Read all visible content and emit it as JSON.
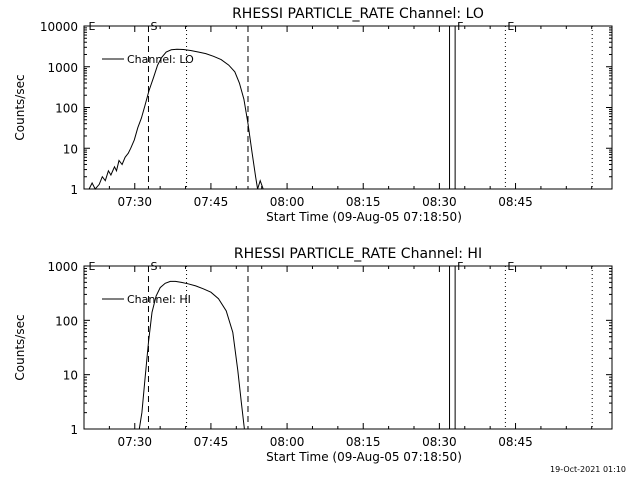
{
  "footer_text": "19-Oct-2021 01:10",
  "colors": {
    "background": "#ffffff",
    "foreground": "#000000"
  },
  "chart_data": [
    {
      "type": "line",
      "title": "RHESSI PARTICLE_RATE Channel: LO",
      "xlabel": "Start Time (09-Aug-05 07:18:50)",
      "ylabel": "Counts/sec",
      "yscale": "log",
      "ylim": [
        1,
        10000
      ],
      "yticks": [
        1,
        10,
        100,
        1000,
        10000
      ],
      "ytick_labels": [
        "1",
        "10",
        "100",
        "1000",
        "10000"
      ],
      "xlim_minutes": [
        440,
        544
      ],
      "xticks_minutes": [
        450,
        465,
        480,
        495,
        510,
        525
      ],
      "xtick_labels": [
        "07:30",
        "07:45",
        "08:00",
        "08:15",
        "08:30",
        "08:45"
      ],
      "grid": false,
      "legend_position": "top-left",
      "markers": [
        {
          "label": "E",
          "time_minutes": 440.5,
          "style": "none"
        },
        {
          "label": "S",
          "time_minutes": 452.7,
          "style": "dashed"
        },
        {
          "label": "",
          "time_minutes": 460.2,
          "style": "dotted"
        },
        {
          "label": "",
          "time_minutes": 472.3,
          "style": "dashed"
        },
        {
          "label": "",
          "time_minutes": 512.0,
          "style": "solid"
        },
        {
          "label": "F",
          "time_minutes": 513.1,
          "style": "solid"
        },
        {
          "label": "E",
          "time_minutes": 523.0,
          "style": "dotted"
        },
        {
          "label": "",
          "time_minutes": 540.1,
          "style": "dotted"
        }
      ],
      "series": [
        {
          "name": "Channel: LO",
          "x_minutes": [
            441.0,
            441.6,
            442.2,
            443.0,
            443.6,
            444.2,
            444.8,
            445.3,
            446.0,
            446.4,
            446.9,
            447.5,
            448.1,
            448.7,
            449.2,
            449.9,
            450.6,
            451.3,
            452.0,
            452.8,
            453.7,
            454.5,
            455.3,
            456.2,
            457.2,
            458.3,
            459.6,
            461.0,
            462.5,
            464.0,
            465.5,
            467.0,
            468.5,
            469.7,
            470.6,
            471.5,
            472.3,
            473.1,
            473.8,
            474.2,
            474.7,
            475.3
          ],
          "values": [
            1,
            1.4,
            1,
            1.3,
            2,
            1.6,
            2.8,
            2.2,
            3.5,
            2.8,
            5,
            4,
            6,
            7.5,
            10,
            16,
            32,
            55,
            110,
            260,
            550,
            1100,
            1700,
            2300,
            2600,
            2700,
            2650,
            2500,
            2300,
            2100,
            1800,
            1500,
            1100,
            750,
            400,
            160,
            40,
            8,
            2,
            1,
            1.6,
            1
          ]
        }
      ]
    },
    {
      "type": "line",
      "title": "RHESSI PARTICLE_RATE Channel: HI",
      "xlabel": "Start Time (09-Aug-05 07:18:50)",
      "ylabel": "Counts/sec",
      "yscale": "log",
      "ylim": [
        1,
        1000
      ],
      "yticks": [
        1,
        10,
        100,
        1000
      ],
      "ytick_labels": [
        "1",
        "10",
        "100",
        "1000"
      ],
      "xlim_minutes": [
        440,
        544
      ],
      "xticks_minutes": [
        450,
        465,
        480,
        495,
        510,
        525
      ],
      "xtick_labels": [
        "07:30",
        "07:45",
        "08:00",
        "08:15",
        "08:30",
        "08:45"
      ],
      "grid": false,
      "legend_position": "top-left",
      "markers": [
        {
          "label": "E",
          "time_minutes": 440.5,
          "style": "none"
        },
        {
          "label": "S",
          "time_minutes": 452.7,
          "style": "dashed"
        },
        {
          "label": "",
          "time_minutes": 460.2,
          "style": "dotted"
        },
        {
          "label": "",
          "time_minutes": 472.3,
          "style": "dashed"
        },
        {
          "label": "",
          "time_minutes": 512.0,
          "style": "solid"
        },
        {
          "label": "F",
          "time_minutes": 513.1,
          "style": "solid"
        },
        {
          "label": "E",
          "time_minutes": 523.0,
          "style": "dotted"
        },
        {
          "label": "",
          "time_minutes": 540.1,
          "style": "dotted"
        }
      ],
      "series": [
        {
          "name": "Channel: HI",
          "x_minutes": [
            450.9,
            451.4,
            452.0,
            452.7,
            453.4,
            454.2,
            455.0,
            456.0,
            457.0,
            458.0,
            459.2,
            460.5,
            462.0,
            463.5,
            465.0,
            466.5,
            468.0,
            469.3,
            470.3,
            471.0,
            471.6
          ],
          "values": [
            1,
            2,
            8,
            40,
            140,
            280,
            400,
            480,
            520,
            520,
            500,
            470,
            430,
            380,
            330,
            250,
            150,
            60,
            12,
            3,
            1
          ]
        }
      ]
    }
  ]
}
